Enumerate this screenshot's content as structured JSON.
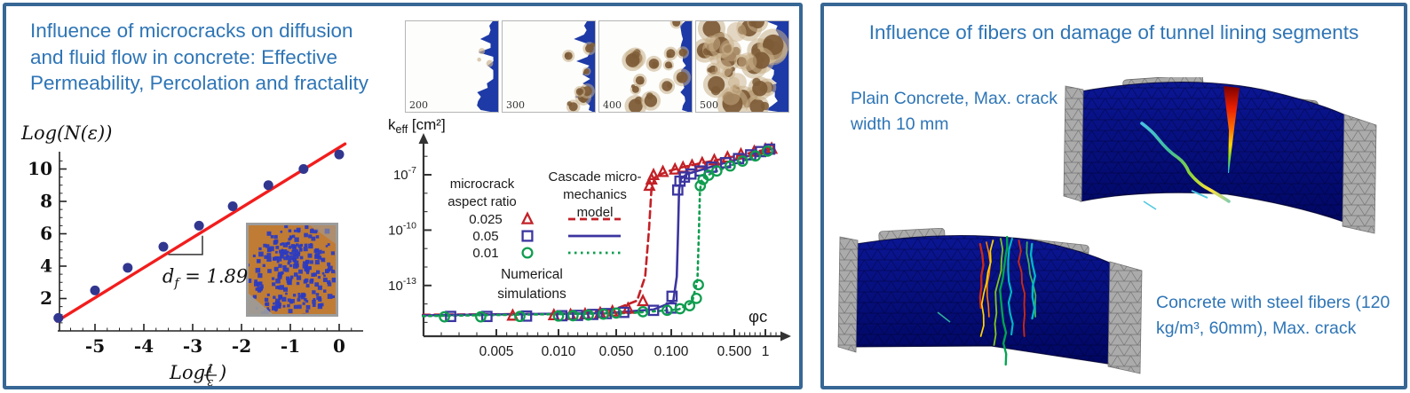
{
  "page": {
    "background": "#ffffff",
    "panel_border_color": "#376795",
    "accent_blue": "#2E75B6"
  },
  "left_panel": {
    "title_lines": [
      "Influence of microcracks on diffusion",
      "and fluid flow in concrete: Effective",
      "Permeability, Percolation and fractality"
    ],
    "strip_labels": [
      "200",
      "300",
      "400",
      "500"
    ],
    "strip_colors": {
      "invasion_blue": "#1d3aa6",
      "cluster_brown": "#7d5a36",
      "cluster_tan": "#c9b08a"
    }
  },
  "right_panel": {
    "title": "Influence of fibers on damage of tunnel lining segments",
    "caption_top_lines": [
      "Plain Concrete, Max. crack",
      "width  10 mm"
    ],
    "caption_bottom_lines": [
      "Concrete with steel fibers (120",
      "kg/m³, 60mm), Max. crack"
    ],
    "segment_colors": {
      "concrete_navy": "#000d85",
      "support_gray": "#ababab"
    },
    "crack_palette": [
      "#cf2910",
      "#ff7d00",
      "#ffd300",
      "#7fc41c",
      "#00a550",
      "#00b7c3",
      "#cf2910",
      "#3fae5c",
      "#00b7c3"
    ]
  },
  "chart_data": [
    {
      "id": "fractal",
      "type": "scatter",
      "title": "",
      "xlabel": "Log(1/ε)",
      "ylabel": "Log(N(ε))",
      "x_ticks": [
        -5,
        -4,
        -3,
        -2,
        -1,
        0
      ],
      "y_ticks": [
        2,
        4,
        6,
        8,
        10
      ],
      "xlim": [
        -5.78,
        0.35
      ],
      "ylim": [
        0,
        12
      ],
      "points_x": [
        -5.75,
        -5.0,
        -4.33,
        -3.6,
        -2.87,
        -2.18,
        -1.45,
        -0.73,
        0.0
      ],
      "points_y": [
        0.8,
        2.5,
        3.9,
        5.2,
        6.5,
        7.7,
        9.0,
        10.0,
        10.9
      ],
      "fit_line": {
        "x1": -5.78,
        "y1": 0.6,
        "x2": 0.12,
        "y2": 11.55
      },
      "slope_marker": {
        "x1": -3.5,
        "x2": -2.8,
        "y_h": 4.72,
        "y_top": 5.88
      },
      "annotation": {
        "var": "d",
        "subscript": "f",
        "rest": " = 1.89",
        "x": -3.62,
        "y": 3.0,
        "display": "d_f = 1.89"
      },
      "point_color": "#31368f",
      "line_color": "#f21d1d",
      "inset": {
        "bg": "#c07c35",
        "cluster_color": "#2b3bc1",
        "frame": "#9c9c9c"
      }
    },
    {
      "id": "keff",
      "type": "scatter",
      "title": "",
      "ylabel": "k_eff [cm²]",
      "ylabel_parts": {
        "base": "k",
        "subscript": "eff",
        "units": " [cm²]"
      },
      "xlabel": "φc",
      "xlim": [
        0.002,
        1.3
      ],
      "ylim": [
        1e-16,
        1e-05
      ],
      "x_tick_labels": [
        "0.005",
        "0.010",
        "0.050",
        "0.100",
        "0.500",
        "1"
      ],
      "x_tick_values": [
        0.005,
        0.01,
        0.05,
        0.1,
        0.5,
        1
      ],
      "y_tick_exponents": [
        -7,
        -10,
        -13
      ],
      "legend": {
        "marker_heading_lines": [
          "microcrack",
          "aspect ratio"
        ],
        "model_heading_lines": [
          "Cascade micro-",
          "mechanics",
          "model"
        ],
        "bottom_lines": [
          "Numerical",
          "simulations"
        ]
      },
      "series": [
        {
          "name": "0.025",
          "marker": "triangle",
          "color": "#c22127",
          "dash": "8 5",
          "percolation_threshold": 0.078,
          "points": [
            [
              0.006,
              2.3e-15
            ],
            [
              0.0095,
              2.4e-15
            ],
            [
              0.014,
              2.5e-15
            ],
            [
              0.021,
              2.7e-15
            ],
            [
              0.032,
              3.1e-15
            ],
            [
              0.045,
              3.8e-15
            ],
            [
              0.058,
              5.5e-15
            ],
            [
              0.07,
              1.4e-14
            ],
            [
              0.076,
              2.5e-08
            ],
            [
              0.078,
              5.5e-08
            ],
            [
              0.08,
              9.5e-08
            ],
            [
              0.09,
              1.4e-07
            ],
            [
              0.11,
              1.9e-07
            ],
            [
              0.135,
              2.4e-07
            ],
            [
              0.17,
              3.1e-07
            ],
            [
              0.22,
              4.2e-07
            ],
            [
              0.3,
              6e-07
            ],
            [
              0.42,
              8.5e-07
            ],
            [
              0.58,
              1.25e-06
            ],
            [
              0.78,
              1.75e-06
            ],
            [
              1.0,
              2.3e-06
            ],
            [
              1.15,
              2.55e-06
            ]
          ],
          "curve": [
            [
              0.0022,
              2.6e-15
            ],
            [
              0.02,
              3e-15
            ],
            [
              0.05,
              5.5e-15
            ],
            [
              0.065,
              1.5e-14
            ],
            [
              0.072,
              3e-13
            ],
            [
              0.0755,
              1e-10
            ],
            [
              0.078,
              2e-08
            ],
            [
              0.082,
              8e-08
            ],
            [
              0.095,
              1.5e-07
            ],
            [
              0.13,
              2.5e-07
            ],
            [
              0.2,
              4e-07
            ],
            [
              0.33,
              6.5e-07
            ],
            [
              0.55,
              1.1e-06
            ],
            [
              0.85,
              1.9e-06
            ],
            [
              1.18,
              2.6e-06
            ]
          ]
        },
        {
          "name": "0.05",
          "marker": "square",
          "color": "#3b35a0",
          "dash": null,
          "percolation_threshold": 0.12,
          "points": [
            [
              0.003,
              2.1e-15
            ],
            [
              0.0045,
              2.1e-15
            ],
            [
              0.007,
              2.2e-15
            ],
            [
              0.011,
              2.3e-15
            ],
            [
              0.017,
              2.4e-15
            ],
            [
              0.026,
              2.7e-15
            ],
            [
              0.038,
              3e-15
            ],
            [
              0.055,
              3.5e-15
            ],
            [
              0.08,
              4.5e-15
            ],
            [
              0.1,
              6e-15
            ],
            [
              0.102,
              2.6e-14
            ],
            [
              0.118,
              1.5e-08
            ],
            [
              0.125,
              4.5e-08
            ],
            [
              0.14,
              7.5e-08
            ],
            [
              0.165,
              1.1e-07
            ],
            [
              0.21,
              1.6e-07
            ],
            [
              0.28,
              2.6e-07
            ],
            [
              0.4,
              4.5e-07
            ],
            [
              0.55,
              7.5e-07
            ],
            [
              0.72,
              1.2e-06
            ],
            [
              0.9,
              1.8e-06
            ],
            [
              1.1,
              2.45e-06
            ]
          ],
          "curve": [
            [
              0.0022,
              2.4e-15
            ],
            [
              0.04,
              3.2e-15
            ],
            [
              0.08,
              5e-15
            ],
            [
              0.105,
              1.3e-14
            ],
            [
              0.115,
              3e-13
            ],
            [
              0.119,
              1e-10
            ],
            [
              0.122,
              1.5e-08
            ],
            [
              0.128,
              6e-08
            ],
            [
              0.15,
              1.1e-07
            ],
            [
              0.21,
              1.8e-07
            ],
            [
              0.33,
              3.5e-07
            ],
            [
              0.55,
              7e-07
            ],
            [
              0.8,
              1.4e-06
            ],
            [
              1.12,
              2.45e-06
            ]
          ]
        },
        {
          "name": "0.01",
          "marker": "circle",
          "color": "#0f9d4f",
          "dash": "2.5 4.5",
          "percolation_threshold": 0.2,
          "points": [
            [
              0.0028,
              2e-15
            ],
            [
              0.0042,
              2e-15
            ],
            [
              0.0065,
              2.1e-15
            ],
            [
              0.01,
              2.2e-15
            ],
            [
              0.015,
              2.3e-15
            ],
            [
              0.023,
              2.5e-15
            ],
            [
              0.035,
              2.8e-15
            ],
            [
              0.05,
              3.2e-15
            ],
            [
              0.07,
              3.8e-15
            ],
            [
              0.095,
              4.5e-15
            ],
            [
              0.125,
              5.5e-15
            ],
            [
              0.16,
              8e-15
            ],
            [
              0.19,
              2e-14
            ],
            [
              0.2,
              1.1e-13
            ],
            [
              0.21,
              2.5e-08
            ],
            [
              0.225,
              5.5e-08
            ],
            [
              0.26,
              9.5e-08
            ],
            [
              0.32,
              1.6e-07
            ],
            [
              0.45,
              3e-07
            ],
            [
              0.6,
              5.5e-07
            ],
            [
              0.8,
              1.05e-06
            ],
            [
              1.05,
              1.9e-06
            ]
          ],
          "curve": [
            [
              0.0022,
              2.2e-15
            ],
            [
              0.06,
              3.2e-15
            ],
            [
              0.12,
              5e-15
            ],
            [
              0.17,
              1.2e-14
            ],
            [
              0.195,
              2e-13
            ],
            [
              0.203,
              1e-10
            ],
            [
              0.208,
              1.2e-08
            ],
            [
              0.215,
              4.5e-08
            ],
            [
              0.24,
              8.5e-08
            ],
            [
              0.3,
              1.4e-07
            ],
            [
              0.42,
              2.7e-07
            ],
            [
              0.6,
              5.5e-07
            ],
            [
              0.85,
              1.1e-06
            ],
            [
              1.1,
              2e-06
            ]
          ]
        }
      ]
    }
  ]
}
